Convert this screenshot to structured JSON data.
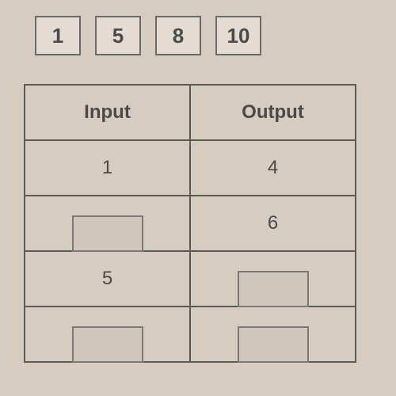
{
  "colors": {
    "paper": "#d7ccc1",
    "ink": "#4a4a4a",
    "tile_fill": "#e4dcd2"
  },
  "tiles": {
    "items": [
      "1",
      "5",
      "8",
      "10"
    ],
    "border_color": "#6b6b6b",
    "font_size": 26
  },
  "table": {
    "headers": {
      "input": "Input",
      "output": "Output"
    },
    "rows": [
      {
        "input": "1",
        "output": "4",
        "input_blank": false,
        "output_blank": false
      },
      {
        "input": "",
        "output": "6",
        "input_blank": true,
        "output_blank": false
      },
      {
        "input": "5",
        "output": "",
        "input_blank": false,
        "output_blank": true
      },
      {
        "input": "",
        "output": "",
        "input_blank": true,
        "output_blank": true
      }
    ],
    "border_color": "#5a5a5a",
    "blank_border_color": "#7a7a7a",
    "blank_fill": "#d0c6bb"
  }
}
